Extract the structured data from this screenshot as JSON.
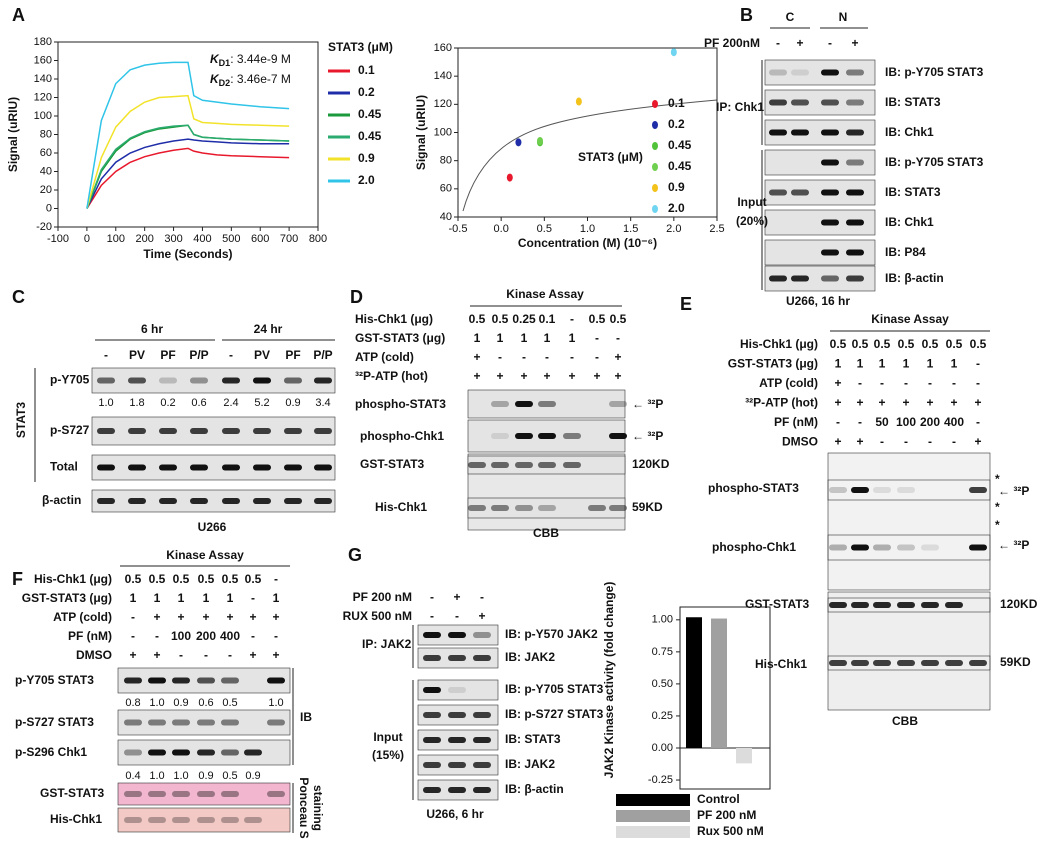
{
  "chart_data": [
    {
      "type": "line",
      "xlabel": "Time (Seconds)",
      "ylabel": "Signal (uRIU)",
      "legend_title": "STAT3 (μM)",
      "annotations": [
        {
          "symbol": "K",
          "sub": "D1",
          "text": ": 3.44e-9 M"
        },
        {
          "symbol": "K",
          "sub": "D2",
          "text": ": 3.46e-7 M"
        }
      ],
      "xlim": [
        -100,
        800
      ],
      "xticks": [
        -100,
        0,
        100,
        200,
        300,
        400,
        500,
        600,
        700,
        800
      ],
      "ylim": [
        -20,
        180
      ],
      "yticks": [
        -20,
        0,
        20,
        40,
        60,
        80,
        100,
        120,
        140,
        160,
        180
      ],
      "x": [
        0,
        50,
        100,
        150,
        200,
        250,
        300,
        350,
        370,
        400,
        450,
        500,
        600,
        700
      ],
      "series": [
        {
          "name": "0.1",
          "color": "#e8192c",
          "values": [
            0,
            25,
            40,
            50,
            56,
            60,
            63,
            65,
            62,
            60,
            58,
            57,
            56,
            55
          ]
        },
        {
          "name": "0.2",
          "color": "#1f2ea8",
          "values": [
            0,
            32,
            50,
            60,
            66,
            70,
            73,
            75,
            74,
            73,
            72,
            71,
            70,
            70
          ]
        },
        {
          "name": "0.45",
          "color": "#1a9a3a",
          "values": [
            0,
            40,
            62,
            75,
            82,
            86,
            88,
            90,
            80,
            77,
            76,
            75,
            74,
            73
          ]
        },
        {
          "name": "0.45",
          "color": "#2bab6f",
          "values": [
            0,
            42,
            64,
            76,
            83,
            87,
            89,
            90,
            80,
            77,
            76,
            75,
            74,
            73
          ]
        },
        {
          "name": "0.9",
          "color": "#f2e32a",
          "values": [
            0,
            55,
            88,
            105,
            115,
            120,
            121,
            122,
            97,
            93,
            92,
            91,
            90,
            89
          ]
        },
        {
          "name": "2.0",
          "color": "#2fc4e8",
          "values": [
            0,
            95,
            135,
            150,
            155,
            157,
            158,
            158,
            122,
            117,
            115,
            113,
            110,
            108
          ]
        }
      ]
    },
    {
      "type": "scatter",
      "xlabel": "Concentration (M) (10⁻⁶)",
      "ylabel": "Signal (uRIU)",
      "legend_title": "STAT3 (μM)",
      "xlim": [
        -0.5,
        2.5
      ],
      "xticks": [
        -0.5,
        {
          "value": 0,
          "label": "0.0"
        },
        0.5,
        {
          "value": 1,
          "label": "1.0"
        },
        1.5,
        {
          "value": 2,
          "label": "2.0"
        },
        2.5
      ],
      "ylim": [
        40,
        160
      ],
      "yticks": [
        40,
        60,
        80,
        100,
        120,
        140,
        160
      ],
      "series": [
        {
          "name": "0.1",
          "color": "#e8192c",
          "x": [
            0.1
          ],
          "values": [
            68
          ]
        },
        {
          "name": "0.2",
          "color": "#1f2ea8",
          "x": [
            0.2
          ],
          "values": [
            93
          ]
        },
        {
          "name": "0.45",
          "color": "#52c23a",
          "x": [
            0.45
          ],
          "values": [
            93
          ]
        },
        {
          "name": "0.45",
          "color": "#6fcf4f",
          "x": [
            0.45
          ],
          "values": [
            94
          ]
        },
        {
          "name": "0.9",
          "color": "#f3c21b",
          "x": [
            0.9
          ],
          "values": [
            122
          ]
        },
        {
          "name": "2.0",
          "color": "#6fd5f0",
          "x": [
            2.0
          ],
          "values": [
            157
          ]
        }
      ]
    },
    {
      "type": "bar",
      "ylabel": "JAK2 Kinase activity (fold change)",
      "categories": [
        "Control",
        "PF 200 nM",
        "Rux 500 nM"
      ],
      "colors": [
        "#000000",
        "#a0a0a0",
        "#dcdcdc"
      ],
      "values": [
        1.02,
        1.01,
        -0.12
      ],
      "ylim": [
        -0.32,
        1.1
      ],
      "yticks": [
        -0.25,
        {
          "value": 0,
          "label": "0.00"
        },
        0.25,
        {
          "value": 0.5,
          "label": "0.50"
        },
        0.75,
        {
          "value": 1,
          "label": "1.00"
        }
      ]
    }
  ],
  "panels": {
    "A": {
      "label": "A"
    },
    "B": {
      "label": "B",
      "groups": [
        "C",
        "N"
      ],
      "treatment": {
        "label": "PF 200nM",
        "values": [
          "-",
          "+",
          "-",
          "+"
        ]
      },
      "ip": "IP: Chk1",
      "input": [
        "Input",
        "(20%)"
      ],
      "blots": [
        "IB: p-Y705 STAT3",
        "IB: STAT3",
        "IB: Chk1",
        "IB: p-Y705 STAT3",
        "IB: STAT3",
        "IB: Chk1",
        "IB: P84",
        "IB: β-actin"
      ],
      "footer": "U266, 16 hr"
    },
    "C": {
      "label": "C",
      "times": [
        "6 hr",
        "24 hr"
      ],
      "lanes": [
        "-",
        "PV",
        "PF",
        "P/P",
        "-",
        "PV",
        "PF",
        "P/P"
      ],
      "group": "STAT3",
      "blots": [
        "p-Y705",
        "p-S727",
        "Total",
        "β-actin"
      ],
      "quantification": [
        "1.0",
        "1.8",
        "0.2",
        "0.6",
        "2.4",
        "5.2",
        "0.9",
        "3.4"
      ],
      "footer": "U266"
    },
    "D": {
      "label": "D",
      "header": "Kinase Assay",
      "rows": [
        {
          "label": "His-Chk1 (μg)",
          "values": [
            "0.5",
            "0.5",
            "0.25",
            "0.1",
            "-",
            "0.5",
            "0.5"
          ]
        },
        {
          "label": "GST-STAT3 (μg)",
          "values": [
            "1",
            "1",
            "1",
            "1",
            "1",
            "-",
            "-"
          ]
        },
        {
          "label": "ATP (cold)",
          "values": [
            "+",
            "-",
            "-",
            "-",
            "-",
            "-",
            "+"
          ]
        },
        {
          "label": "³²P-ATP (hot)",
          "values": [
            "+",
            "+",
            "+",
            "+",
            "+",
            "+",
            "+"
          ]
        }
      ],
      "blots": [
        "phospho-STAT3",
        "phospho-Chk1",
        "GST-STAT3",
        "His-Chk1"
      ],
      "markers": [
        "← ³²P",
        "← ³²P",
        "120KD",
        "59KD"
      ],
      "footer": "CBB"
    },
    "E": {
      "label": "E",
      "header": "Kinase Assay",
      "rows": [
        {
          "label": "His-Chk1 (μg)",
          "values": [
            "0.5",
            "0.5",
            "0.5",
            "0.5",
            "0.5",
            "0.5",
            "0.5"
          ]
        },
        {
          "label": "GST-STAT3 (μg)",
          "values": [
            "1",
            "1",
            "1",
            "1",
            "1",
            "1",
            "-"
          ]
        },
        {
          "label": "ATP (cold)",
          "values": [
            "+",
            "-",
            "-",
            "-",
            "-",
            "-",
            "-"
          ]
        },
        {
          "label": "³²P-ATP (hot)",
          "values": [
            "+",
            "+",
            "+",
            "+",
            "+",
            "+",
            "+"
          ]
        },
        {
          "label": "PF (nM)",
          "values": [
            "-",
            "-",
            "50",
            "100",
            "200",
            "400",
            "-"
          ]
        },
        {
          "label": "DMSO",
          "values": [
            "+",
            "+",
            "-",
            "-",
            "-",
            "-",
            "+"
          ]
        }
      ],
      "blots": [
        "phospho-STAT3",
        "phospho-Chk1",
        "GST-STAT3",
        "His-Chk1"
      ],
      "markers": [
        "*",
        "← ³²P",
        "*",
        "*",
        "← ³²P",
        "120KD",
        "59KD"
      ],
      "footer": "CBB"
    },
    "F": {
      "label": "F",
      "header": "Kinase Assay",
      "rows": [
        {
          "label": "His-Chk1 (μg)",
          "values": [
            "0.5",
            "0.5",
            "0.5",
            "0.5",
            "0.5",
            "0.5",
            "-"
          ]
        },
        {
          "label": "GST-STAT3 (μg)",
          "values": [
            "1",
            "1",
            "1",
            "1",
            "1",
            "-",
            "1"
          ]
        },
        {
          "label": "ATP (cold)",
          "values": [
            "-",
            "+",
            "+",
            "+",
            "+",
            "+",
            "+"
          ]
        },
        {
          "label": "PF (nM)",
          "values": [
            "-",
            "-",
            "100",
            "200",
            "400",
            "-",
            "-"
          ]
        },
        {
          "label": "DMSO",
          "values": [
            "+",
            "+",
            "-",
            "-",
            "-",
            "+",
            "+"
          ]
        }
      ],
      "blots": [
        "p-Y705 STAT3",
        "p-S727 STAT3",
        "p-S296 Chk1",
        "GST-STAT3",
        "His-Chk1"
      ],
      "quantification": [
        [
          "0.8",
          "1.0",
          "0.9",
          "0.6",
          "0.5",
          null,
          "1.0"
        ],
        [
          "0.4",
          "1.0",
          "1.0",
          "0.9",
          "0.5",
          "0.9",
          null
        ]
      ],
      "ib": "IB",
      "stain": [
        "Ponceau S",
        "staining"
      ]
    },
    "G": {
      "label": "G",
      "rows": [
        {
          "label": "PF 200 nM",
          "values": [
            "-",
            "+",
            "-"
          ]
        },
        {
          "label": "RUX 500 nM",
          "values": [
            "-",
            "-",
            "+"
          ]
        }
      ],
      "ip": "IP: JAK2",
      "input": [
        "Input",
        "(15%)"
      ],
      "blots": [
        "IB: p-Y570 JAK2",
        "IB: JAK2",
        "IB: p-Y705 STAT3",
        "IB: p-S727 STAT3",
        "IB: STAT3",
        "IB: JAK2",
        "IB: β-actin"
      ],
      "footer": "U266, 6 hr"
    }
  }
}
